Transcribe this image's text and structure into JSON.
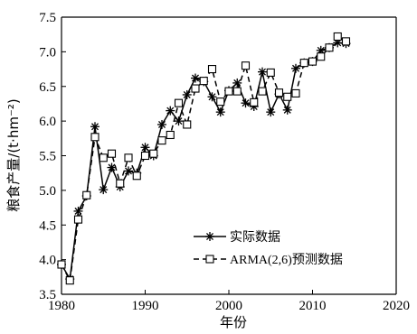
{
  "chart_data": {
    "type": "line",
    "xlabel": "年份",
    "ylabel": "粮食产量/(t·hm⁻²)",
    "xlim": [
      1980,
      2020
    ],
    "ylim": [
      3.5,
      7.5
    ],
    "xticks": [
      1980,
      1990,
      2000,
      2010,
      2020
    ],
    "yticks": [
      3.5,
      4.0,
      4.5,
      5.0,
      5.5,
      6.0,
      6.5,
      7.0,
      7.5
    ],
    "xtick_labels": [
      "1980",
      "1990",
      "2000",
      "2010",
      "2020"
    ],
    "ytick_labels": [
      "3.5",
      "4.0",
      "4.5",
      "5.0",
      "5.5",
      "6.0",
      "6.5",
      "7.0",
      "7.5"
    ],
    "grid": false,
    "legend_position": "bottom-right",
    "series": [
      {
        "name": "实际数据",
        "style": "solid",
        "marker": "asterisk",
        "color": "#000000",
        "x": [
          1980,
          1981,
          1982,
          1983,
          1984,
          1985,
          1986,
          1987,
          1988,
          1989,
          1990,
          1991,
          1992,
          1993,
          1994,
          1995,
          1996,
          1997,
          1998,
          1999,
          2000,
          2001,
          2002,
          2003,
          2004,
          2005,
          2006,
          2007,
          2008,
          2009,
          2010,
          2011,
          2012,
          2013,
          2014
        ],
        "y": [
          3.93,
          3.72,
          4.7,
          4.92,
          5.92,
          5.01,
          5.33,
          5.05,
          5.28,
          5.25,
          5.62,
          5.5,
          5.95,
          6.15,
          6.0,
          6.38,
          6.62,
          6.57,
          6.35,
          6.13,
          6.44,
          6.55,
          6.26,
          6.21,
          6.71,
          6.13,
          6.39,
          6.16,
          6.76,
          6.84,
          6.86,
          7.02,
          7.06,
          7.13,
          7.12
        ]
      },
      {
        "name": "ARMA(2,6)预测数据",
        "style": "dashed",
        "marker": "square",
        "color": "#000000",
        "x": [
          1980,
          1981,
          1982,
          1983,
          1984,
          1985,
          1986,
          1987,
          1988,
          1989,
          1990,
          1991,
          1992,
          1993,
          1994,
          1995,
          1996,
          1997,
          1998,
          1999,
          2000,
          2001,
          2002,
          2003,
          2004,
          2005,
          2006,
          2007,
          2008,
          2009,
          2010,
          2011,
          2012,
          2013,
          2014
        ],
        "y": [
          3.93,
          3.7,
          4.58,
          4.93,
          5.77,
          5.47,
          5.53,
          5.1,
          5.47,
          5.21,
          5.5,
          5.53,
          5.72,
          5.8,
          6.26,
          5.95,
          6.47,
          6.58,
          6.75,
          6.28,
          6.43,
          6.43,
          6.8,
          6.27,
          6.43,
          6.7,
          6.41,
          6.35,
          6.4,
          6.84,
          6.86,
          6.93,
          7.06,
          7.22,
          7.15
        ]
      }
    ]
  }
}
